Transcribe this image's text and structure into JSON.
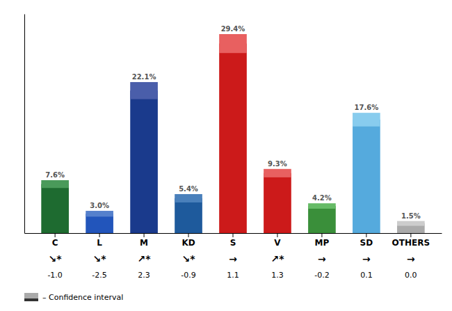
{
  "chart_data": {
    "type": "bar",
    "categories": [
      "C",
      "L",
      "M",
      "KD",
      "S",
      "V",
      "MP",
      "SD",
      "OTHERS"
    ],
    "values": [
      7.6,
      3.0,
      22.1,
      5.4,
      29.4,
      9.3,
      4.2,
      17.6,
      1.5
    ],
    "colors": [
      "#1e6b30",
      "#2255bb",
      "#1a3a8c",
      "#1e5a9c",
      "#cc1a1a",
      "#cc1a1a",
      "#3a8f3a",
      "#55aadd",
      "#aaaaaa"
    ],
    "errors": [
      0.608,
      0.45,
      1.326,
      0.648,
      1.47,
      0.651,
      0.42,
      1.056,
      0.375
    ],
    "error_colors": [
      "#4a9a5a",
      "#5580cc",
      "#4a5eaa",
      "#4a80bb",
      "#e86060",
      "#e86060",
      "#66bb66",
      "#88ccee",
      "#cccccc"
    ],
    "data_labels": true,
    "value_labels": [
      "7.6%",
      "3.0%",
      "22.1%",
      "5.4%",
      "29.4%",
      "9.3%",
      "4.2%",
      "17.6%",
      "1.5%"
    ],
    "trend_labels": [
      "↘*",
      "↘*",
      "↗*",
      "↘*",
      "→",
      "↗*",
      "→",
      "→",
      "→"
    ],
    "differences": [
      -1.0,
      -2.5,
      2.3,
      -0.9,
      1.1,
      1.3,
      -0.2,
      0.1,
      0.0
    ],
    "difference_labels": [
      "-1.0",
      "-2.5",
      "2.3",
      "-0.9",
      "1.1",
      "1.3",
      "-0.2",
      "0.1",
      "0.0"
    ],
    "legend": "lower left",
    "legend_label": "– Confidence interval",
    "legend_colors": [
      "#aaaaaa",
      "#333333"
    ],
    "ylim": [
      0,
      34
    ],
    "tick_labels": "x",
    "grid": false
  }
}
